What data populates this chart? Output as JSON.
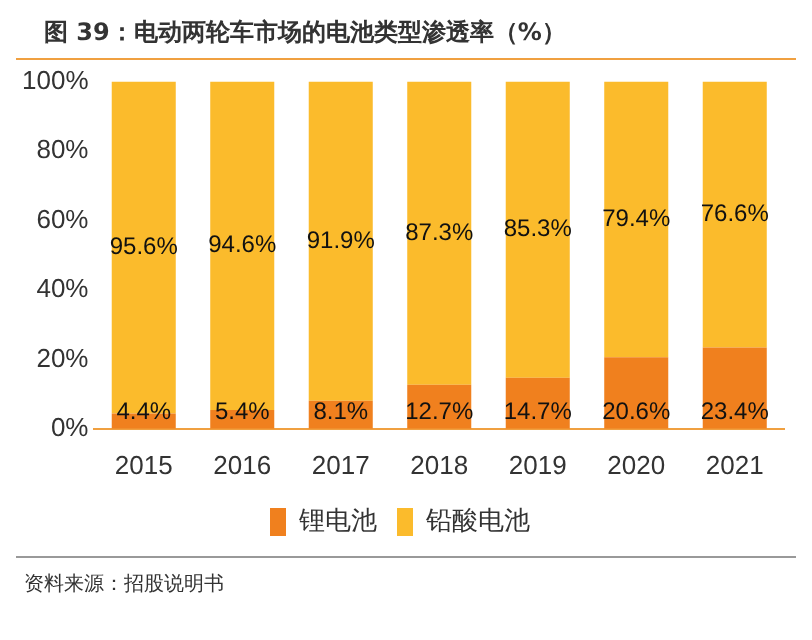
{
  "chart_data": {
    "type": "bar",
    "title": "图 39：电动两轮车市场的电池类型渗透率（%）",
    "stacked": true,
    "categories": [
      "2015",
      "2016",
      "2017",
      "2018",
      "2019",
      "2020",
      "2021"
    ],
    "series": [
      {
        "name": "锂电池",
        "color": "#f0801e",
        "values": [
          4.4,
          5.4,
          8.1,
          12.7,
          14.7,
          20.6,
          23.4
        ],
        "value_labels": [
          "4.4%",
          "5.4%",
          "8.1%",
          "12.7%",
          "14.7%",
          "20.6%",
          "23.4%"
        ]
      },
      {
        "name": "铅酸电池",
        "color": "#fbbb2c",
        "values": [
          95.6,
          94.6,
          91.9,
          87.3,
          85.3,
          79.4,
          76.6
        ],
        "value_labels": [
          "95.6%",
          "94.6%",
          "91.9%",
          "87.3%",
          "85.3%",
          "79.4%",
          "76.6%"
        ]
      }
    ],
    "ylim": [
      0,
      100
    ],
    "yticks": [
      {
        "value": 0,
        "label": "0%"
      },
      {
        "value": 20,
        "label": "20%"
      },
      {
        "value": 40,
        "label": "40%"
      },
      {
        "value": 60,
        "label": "60%"
      },
      {
        "value": 80,
        "label": "80%"
      },
      {
        "value": 100,
        "label": "100%"
      }
    ],
    "grid": false,
    "legend": "bottom",
    "annotations": [
      "资料来源：招股说明书"
    ]
  }
}
